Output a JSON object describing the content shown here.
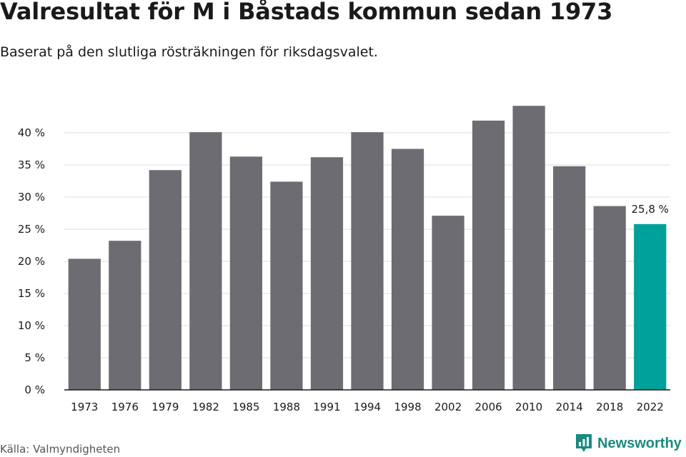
{
  "title": "Valresultat för M i Båstads kommun sedan 1973",
  "subtitle": "Baserat på den slutliga rösträkningen för riksdagsvalet.",
  "source": "Källa: Valmyndigheten",
  "brand": {
    "name": "Newsworthy",
    "icon": "newsworthy-logo-icon",
    "color": "#1a8a7e"
  },
  "colors": {
    "bar": "#6d6c72",
    "highlight": "#00a19a",
    "grid": "#dcdcdc",
    "axis": "#1a1a1a"
  },
  "chart_data": {
    "type": "bar",
    "categories": [
      "1973",
      "1976",
      "1979",
      "1982",
      "1985",
      "1988",
      "1991",
      "1994",
      "1998",
      "2002",
      "2006",
      "2010",
      "2014",
      "2018",
      "2022"
    ],
    "values": [
      20.4,
      23.2,
      34.2,
      40.1,
      36.3,
      32.4,
      36.2,
      40.1,
      37.5,
      27.1,
      41.9,
      44.2,
      34.8,
      28.6,
      25.8
    ],
    "highlight_index": 14,
    "data_labels": [
      {
        "index": 14,
        "text": "25,8 %"
      }
    ],
    "ylim": [
      0,
      45
    ],
    "yticks": [
      0,
      5,
      10,
      15,
      20,
      25,
      30,
      35,
      40
    ],
    "ytick_labels": [
      "0 %",
      "5 %",
      "10 %",
      "15 %",
      "20 %",
      "25 %",
      "30 %",
      "35 %",
      "40 %"
    ],
    "grid": true,
    "legend": "none"
  }
}
